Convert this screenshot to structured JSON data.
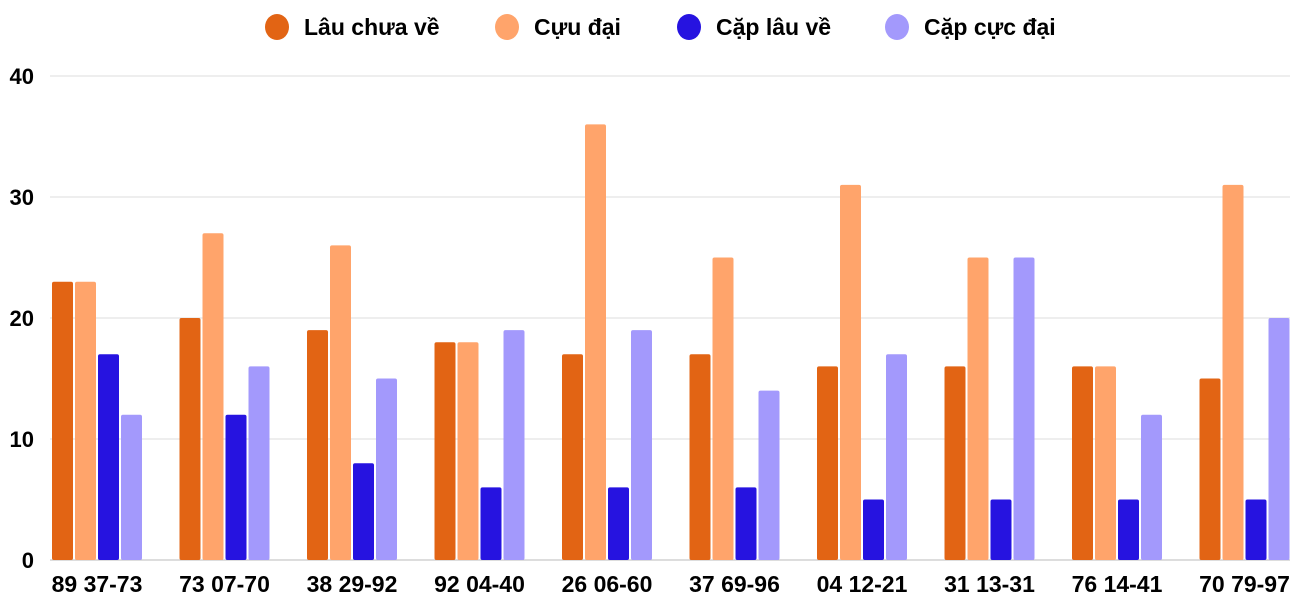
{
  "chart_data": {
    "type": "bar",
    "categories": [
      "89 37-73",
      "73 07-70",
      "38 29-92",
      "92 04-40",
      "26 06-60",
      "37 69-96",
      "04 12-21",
      "31 13-31",
      "76 14-41",
      "70 79-97"
    ],
    "series": [
      {
        "name": "Lâu chưa về",
        "color": "#e26414",
        "values": [
          23,
          20,
          19,
          18,
          17,
          17,
          16,
          16,
          16,
          15
        ]
      },
      {
        "name": "Cựu đại",
        "color": "#ffa46b",
        "values": [
          23,
          27,
          26,
          18,
          36,
          25,
          31,
          25,
          16,
          31
        ]
      },
      {
        "name": "Cặp lâu về",
        "color": "#2613e0",
        "values": [
          17,
          12,
          8,
          6,
          6,
          6,
          5,
          5,
          5,
          5
        ]
      },
      {
        "name": "Cặp cực đại",
        "color": "#a399fc",
        "values": [
          12,
          16,
          15,
          19,
          19,
          14,
          17,
          25,
          12,
          20
        ]
      }
    ],
    "ylim": [
      0,
      40
    ],
    "yticks": [
      "0",
      "10",
      "20",
      "30",
      "40"
    ],
    "grid": true,
    "legend": "top"
  }
}
